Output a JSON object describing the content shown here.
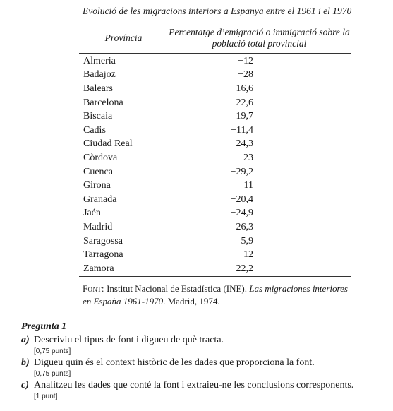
{
  "table": {
    "caption": "Evolució de les migracions interiors a Espanya entre el 1961 i el 1970",
    "header_province": "Província",
    "header_percentage": "Percentatge d’emigració o immigració sobre la població total provincial",
    "rows": [
      {
        "province": "Almeria",
        "value": "−12"
      },
      {
        "province": "Badajoz",
        "value": "−28"
      },
      {
        "province": "Balears",
        "value": "16,6"
      },
      {
        "province": "Barcelona",
        "value": "22,6"
      },
      {
        "province": "Biscaia",
        "value": "19,7"
      },
      {
        "province": "Cadis",
        "value": "−11,4"
      },
      {
        "province": "Ciudad Real",
        "value": "−24,3"
      },
      {
        "province": "Còrdova",
        "value": "−23"
      },
      {
        "province": "Cuenca",
        "value": "−29,2"
      },
      {
        "province": "Girona",
        "value": "11"
      },
      {
        "province": "Granada",
        "value": "−20,4"
      },
      {
        "province": "Jaén",
        "value": "−24,9"
      },
      {
        "province": "Madrid",
        "value": "26,3"
      },
      {
        "province": "Saragossa",
        "value": "5,9"
      },
      {
        "province": "Tarragona",
        "value": "12"
      },
      {
        "province": "Zamora",
        "value": "−22,2"
      }
    ]
  },
  "source": {
    "label": "Font:",
    "text_before": " Institut Nacional de Estadística (INE). ",
    "title": "Las migraciones interiores en España 1961-1970",
    "text_after": ". Madrid, 1974."
  },
  "question": {
    "title": "Pregunta 1",
    "items": [
      {
        "letter": "a)",
        "text": "Descriviu el tipus de font i digueu de què tracta.",
        "points": "[0,75 punts]"
      },
      {
        "letter": "b)",
        "text": "Digueu quin és el context històric de les dades que proporciona la font.",
        "points": "[0,75 punts]"
      },
      {
        "letter": "c)",
        "text": "Analitzeu les dades que conté la font i extraieu-ne les conclusions corresponents.",
        "points": "[1 punt]"
      }
    ]
  }
}
